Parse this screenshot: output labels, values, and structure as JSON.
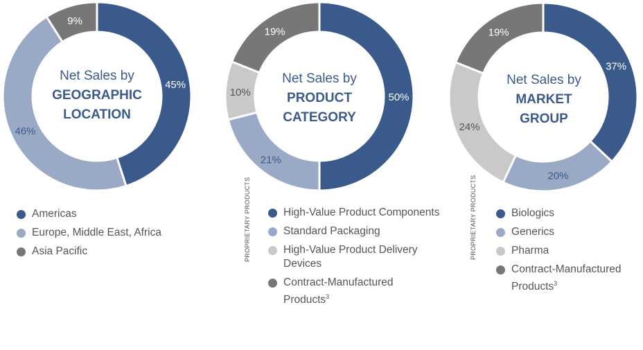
{
  "colors": {
    "dark_blue": "#3b5a8c",
    "light_blue": "#9aa9c6",
    "dark_gray": "#777777",
    "light_gray": "#c9c9c9"
  },
  "chart_data": [
    {
      "type": "pie",
      "title_line1": "Net Sales by",
      "title_line2": "GEOGRAPHIC",
      "title_line3": "LOCATION",
      "categories": [
        "Americas",
        "Europe, Middle East, Africa",
        "Asia Pacific"
      ],
      "values": [
        45,
        46,
        9
      ],
      "labels": [
        "45%",
        "46%",
        "9%"
      ],
      "colors": [
        "#3b5a8c",
        "#9aa9c6",
        "#777777"
      ],
      "side_label": ""
    },
    {
      "type": "pie",
      "title_line1": "Net Sales by",
      "title_line2": "PRODUCT",
      "title_line3": "CATEGORY",
      "categories": [
        "High-Value Product Components",
        "Standard Packaging",
        "High-Value Product Delivery Devices",
        "Contract-Manufactured Products"
      ],
      "superscripts": [
        "",
        "",
        "",
        "3"
      ],
      "values": [
        50,
        21,
        10,
        19
      ],
      "labels": [
        "50%",
        "21%",
        "10%",
        "19%"
      ],
      "colors": [
        "#3b5a8c",
        "#9aa9c6",
        "#c9c9c9",
        "#777777"
      ],
      "side_label": "PROPRIETARY PRODUCTS"
    },
    {
      "type": "pie",
      "title_line1": "Net Sales by",
      "title_line2": "MARKET",
      "title_line3": "GROUP",
      "categories": [
        "Biologics",
        "Generics",
        "Pharma",
        "Contract-Manufactured Products"
      ],
      "superscripts": [
        "",
        "",
        "",
        "3"
      ],
      "values": [
        37,
        20,
        24,
        19
      ],
      "labels": [
        "37%",
        "20%",
        "24%",
        "19%"
      ],
      "colors": [
        "#3b5a8c",
        "#9aa9c6",
        "#c9c9c9",
        "#777777"
      ],
      "side_label": "PROPRIETARY PRODUCTS"
    }
  ]
}
